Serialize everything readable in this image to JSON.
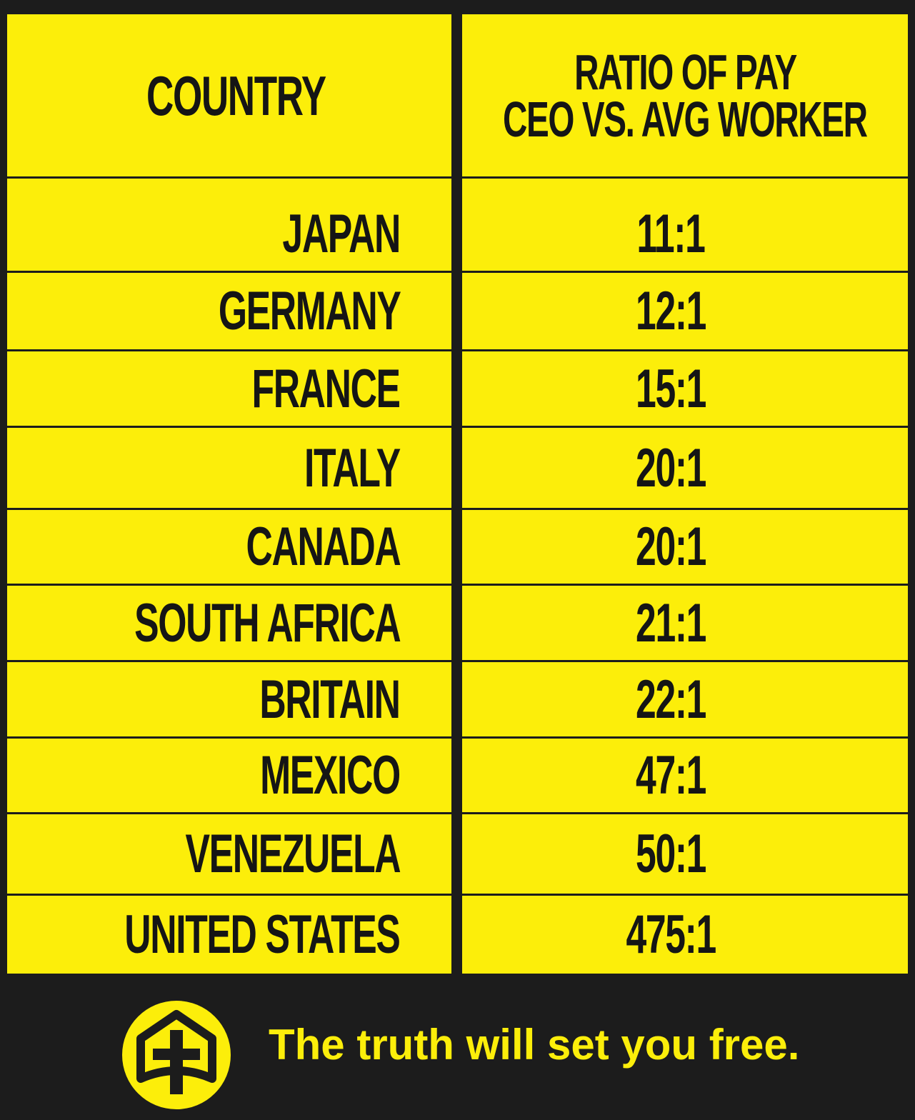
{
  "table": {
    "header": [
      [
        "COUNTRY"
      ],
      [
        "RATIO OF PAY",
        "CEO VS. AVG WORKER"
      ]
    ],
    "rows": [
      [
        "JAPAN",
        "11:1"
      ],
      [
        "GERMANY",
        "12:1"
      ],
      [
        "FRANCE",
        "15:1"
      ],
      [
        "ITALY",
        "20:1"
      ],
      [
        "CANADA",
        "20:1"
      ],
      [
        "SOUTH AFRICA",
        "21:1"
      ],
      [
        "BRITAIN",
        "22:1"
      ],
      [
        "MEXICO",
        "47:1"
      ],
      [
        "VENEZUELA",
        "50:1"
      ],
      [
        "UNITED STATES",
        "475:1"
      ]
    ]
  },
  "footer": {
    "slogan": "The truth will set you free."
  }
}
